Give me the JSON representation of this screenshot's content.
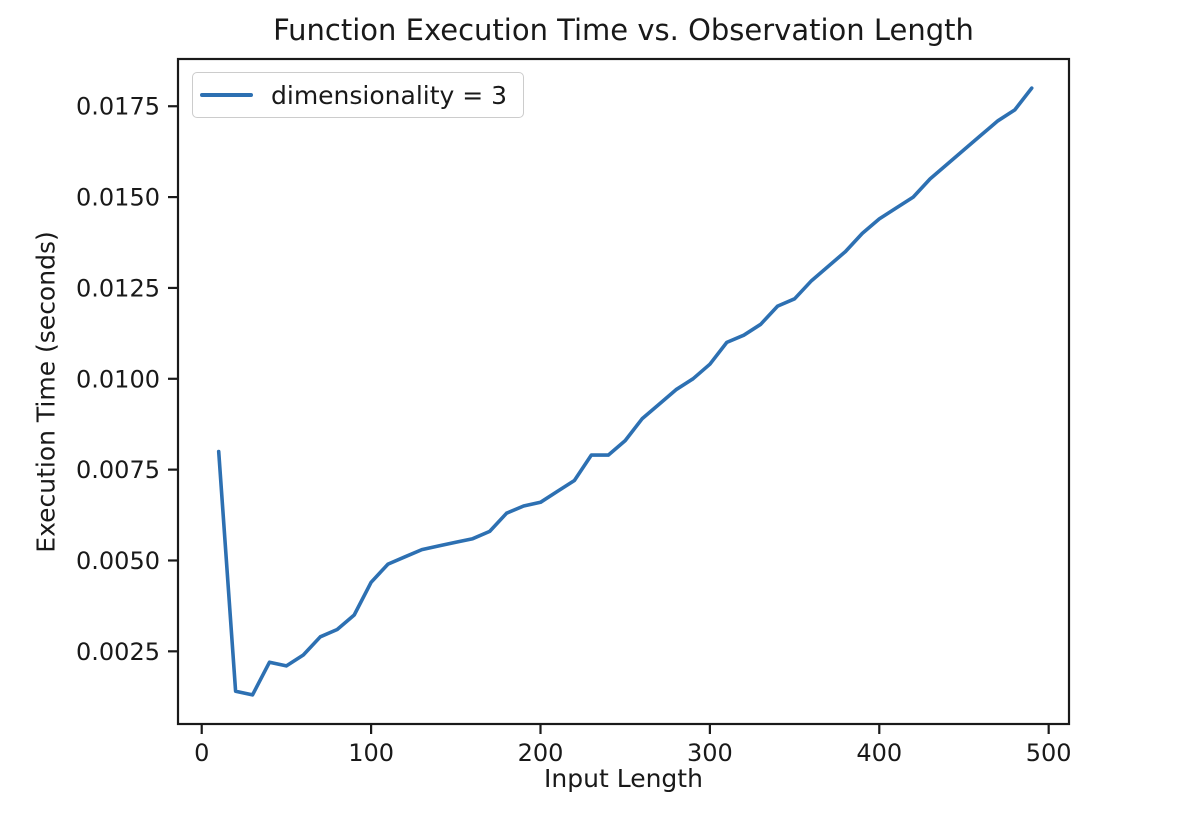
{
  "figure": {
    "background": "#ffffff",
    "text_color": "#191919",
    "spine_color": "#1a1a1a"
  },
  "chart_data": {
    "type": "line",
    "title": "Function Execution Time vs. Observation Length",
    "xlabel": "Input Length",
    "ylabel": "Execution Time (seconds)",
    "grid": false,
    "legend": {
      "position": "upper left",
      "border_color": "#cccccc"
    },
    "xlim": [
      -14,
      512
    ],
    "ylim": [
      0.0005,
      0.0188
    ],
    "x_ticks": [
      0,
      100,
      200,
      300,
      400,
      500
    ],
    "x_tick_labels": [
      "0",
      "100",
      "200",
      "300",
      "400",
      "500"
    ],
    "y_ticks": [
      0.0025,
      0.005,
      0.0075,
      0.01,
      0.0125,
      0.015,
      0.0175
    ],
    "y_tick_labels": [
      "0.0025",
      "0.0050",
      "0.0075",
      "0.0100",
      "0.0125",
      "0.0150",
      "0.0175"
    ],
    "series": [
      {
        "name": "dimensionality = 3",
        "color": "#2d70b2",
        "x": [
          10,
          20,
          30,
          40,
          50,
          60,
          70,
          80,
          90,
          100,
          110,
          120,
          130,
          140,
          150,
          160,
          170,
          180,
          190,
          200,
          210,
          220,
          230,
          240,
          250,
          260,
          270,
          280,
          290,
          300,
          310,
          320,
          330,
          340,
          350,
          360,
          370,
          380,
          390,
          400,
          410,
          420,
          430,
          440,
          450,
          460,
          470,
          480,
          490
        ],
        "y": [
          0.008,
          0.0014,
          0.0013,
          0.0022,
          0.0021,
          0.0024,
          0.0029,
          0.0031,
          0.0035,
          0.0044,
          0.0049,
          0.0051,
          0.0053,
          0.0054,
          0.0055,
          0.0056,
          0.0058,
          0.0063,
          0.0065,
          0.0066,
          0.0069,
          0.0072,
          0.0079,
          0.0079,
          0.0083,
          0.0089,
          0.0093,
          0.0097,
          0.01,
          0.0104,
          0.011,
          0.0112,
          0.0115,
          0.012,
          0.0122,
          0.0127,
          0.0131,
          0.0135,
          0.014,
          0.0144,
          0.0147,
          0.015,
          0.0155,
          0.0159,
          0.0163,
          0.0167,
          0.0171,
          0.0174,
          0.018
        ]
      }
    ]
  }
}
